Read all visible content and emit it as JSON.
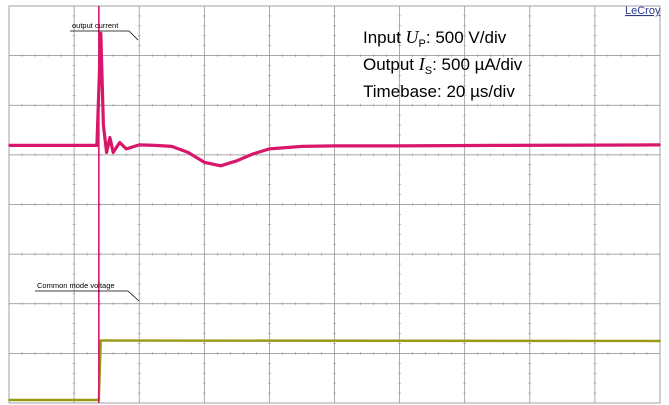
{
  "chart_data": [
    {
      "type": "line",
      "title": "",
      "grid": true,
      "xlim": [
        0,
        200
      ],
      "x_divisions": 10,
      "y_divisions": 8,
      "annotations": {
        "brand": "LeCroy",
        "settings": [
          {
            "prefix": "Input ",
            "symbol": "U",
            "subscript": "P",
            "suffix": ": 500 V/div"
          },
          {
            "prefix": "Output ",
            "symbol": "I",
            "subscript": "S",
            "suffix": ": 500 µA/div"
          },
          {
            "prefix": "Timebase: 20 µs/div",
            "symbol": "",
            "subscript": "",
            "suffix": ""
          }
        ],
        "trace_labels": [
          "output current",
          "Common mode voltage"
        ]
      },
      "series": [
        {
          "name": "output current",
          "color": "#d8176a",
          "units": "div",
          "x": [
            0,
            27,
            28.2,
            29,
            30,
            31,
            32,
            34,
            36,
            40,
            45,
            50,
            55,
            60,
            65,
            70,
            75,
            80,
            90,
            100,
            120,
            150,
            200
          ],
          "y": [
            5.19,
            5.19,
            7.45,
            5.6,
            5.05,
            5.35,
            5.05,
            5.25,
            5.12,
            5.2,
            5.19,
            5.17,
            5.05,
            4.85,
            4.78,
            4.88,
            5.02,
            5.12,
            5.17,
            5.18,
            5.18,
            5.19,
            5.2
          ]
        },
        {
          "name": "Common mode voltage",
          "color": "#9a9a16",
          "units": "div",
          "x": [
            0,
            27.6,
            28.2,
            200
          ],
          "y": [
            0.06,
            0.06,
            1.26,
            1.25
          ]
        }
      ]
    }
  ]
}
